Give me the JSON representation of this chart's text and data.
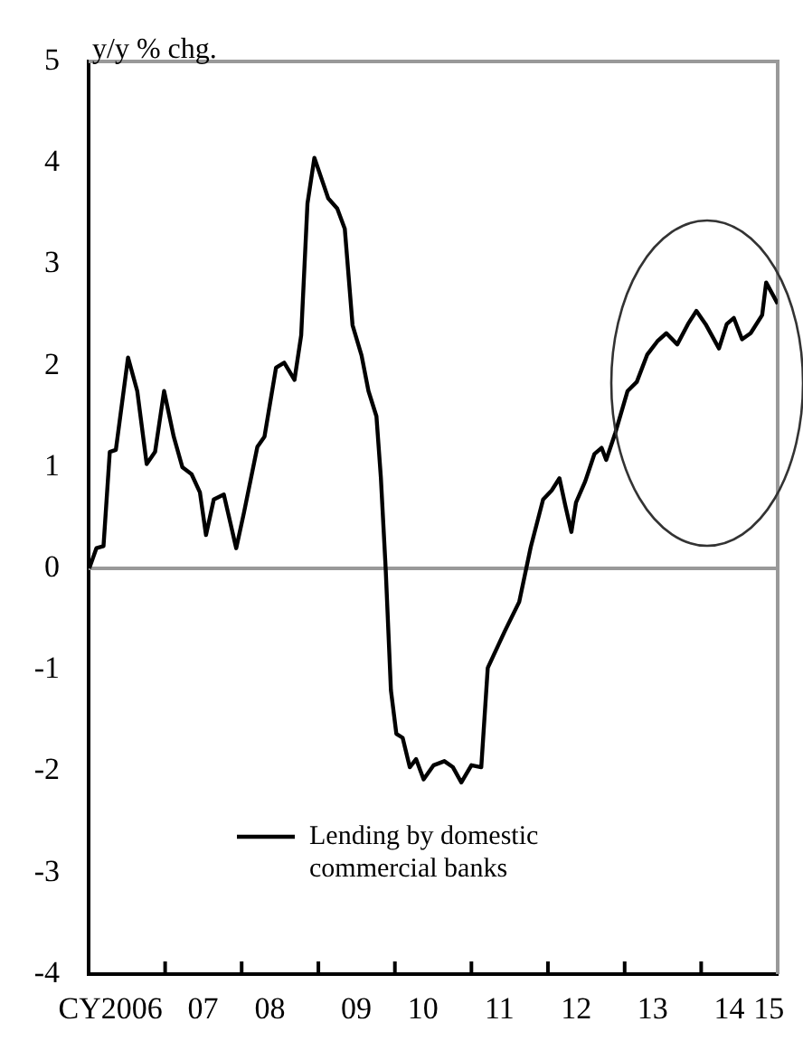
{
  "chart_data": {
    "type": "line",
    "ylabel": "y/y % chg.",
    "x": [
      "2006-01-04",
      "2006-02-07",
      "2006-03-13",
      "2006-04-12",
      "2006-05-11",
      "2006-07-08",
      "2006-08-21",
      "2006-10-05",
      "2006-11-14",
      "2006-12-27",
      "2007-02-11",
      "2007-03-24",
      "2007-05-07",
      "2007-06-16",
      "2007-07-15",
      "2007-08-21",
      "2007-10-08",
      "2007-12-06",
      "2008-01-12",
      "2008-03-16",
      "2008-04-19",
      "2008-06-13",
      "2008-07-22",
      "2008-09-09",
      "2008-10-11",
      "2008-11-10",
      "2008-12-13",
      "2009-02-17",
      "2009-04-01",
      "2009-05-07",
      "2009-06-13",
      "2009-07-26",
      "2009-08-28",
      "2009-10-05",
      "2009-10-26",
      "2009-11-18",
      "2009-12-13",
      "2010-01-08",
      "2010-02-07",
      "2010-03-13",
      "2010-04-12",
      "2010-05-18",
      "2010-07-05",
      "2010-08-25",
      "2010-10-05",
      "2010-11-14",
      "2011-01-01",
      "2011-02-17",
      "2011-03-20",
      "2011-06-09",
      "2011-08-17",
      "2011-10-11",
      "2011-12-09",
      "2012-01-19",
      "2012-02-25",
      "2012-03-24",
      "2012-04-22",
      "2012-05-14",
      "2012-06-27",
      "2012-08-10",
      "2012-09-13",
      "2012-10-05",
      "2012-11-18",
      "2013-01-15",
      "2013-02-28",
      "2013-04-19",
      "2013-06-06",
      "2013-07-19",
      "2013-09-09",
      "2013-10-30",
      "2013-12-09",
      "2014-01-22",
      "2014-03-27",
      "2014-05-03",
      "2014-06-06",
      "2014-07-15",
      "2014-08-25",
      "2014-10-19",
      "2014-11-07",
      "2015-01-01"
    ],
    "series": [
      {
        "name": "Lending by domestic commercial banks",
        "color": "#000000",
        "values": [
          0,
          0.2,
          0.22,
          1.15,
          1.17,
          2.08,
          1.75,
          1.03,
          1.15,
          1.75,
          1.3,
          1.0,
          0.93,
          0.75,
          0.33,
          0.68,
          0.73,
          0.2,
          0.55,
          1.2,
          1.3,
          1.98,
          2.03,
          1.86,
          2.3,
          3.6,
          4.05,
          3.65,
          3.55,
          3.35,
          2.4,
          2.1,
          1.75,
          1.5,
          0.9,
          0,
          -1.2,
          -1.63,
          -1.67,
          -1.96,
          -1.88,
          -2.08,
          -1.94,
          -1.9,
          -1.96,
          -2.11,
          -1.94,
          -1.96,
          -0.98,
          -0.62,
          -0.33,
          0.21,
          0.68,
          0.77,
          0.89,
          0.62,
          0.36,
          0.65,
          0.86,
          1.13,
          1.19,
          1.07,
          1.34,
          1.75,
          1.84,
          2.11,
          2.24,
          2.32,
          2.21,
          2.41,
          2.54,
          2.41,
          2.17,
          2.41,
          2.47,
          2.26,
          2.32,
          2.5,
          2.82,
          2.61
        ]
      }
    ],
    "xlim": [
      "2006-01-01",
      "2015-01-01"
    ],
    "xticks": [
      {
        "value": "2006-04-15",
        "label": "CY2006"
      },
      {
        "value": "2007-01-01",
        "label": null
      },
      {
        "value": "2007-07-01",
        "label": "07"
      },
      {
        "value": "2008-01-01",
        "label": null
      },
      {
        "value": "2008-05-15",
        "label": "08"
      },
      {
        "value": "2009-01-01",
        "label": null
      },
      {
        "value": "2009-07-01",
        "label": "09"
      },
      {
        "value": "2010-01-01",
        "label": null
      },
      {
        "value": "2010-05-15",
        "label": "10"
      },
      {
        "value": "2011-01-01",
        "label": null
      },
      {
        "value": "2011-05-15",
        "label": "11"
      },
      {
        "value": "2012-01-01",
        "label": null
      },
      {
        "value": "2012-05-15",
        "label": "12"
      },
      {
        "value": "2013-01-01",
        "label": null
      },
      {
        "value": "2013-05-15",
        "label": "13"
      },
      {
        "value": "2014-01-01",
        "label": null
      },
      {
        "value": "2014-05-15",
        "label": "14"
      },
      {
        "value": "2014-11-20",
        "label": "15"
      }
    ],
    "ylim": [
      -4,
      5
    ],
    "yticks": [
      -4,
      -3,
      -2,
      -1,
      0,
      1,
      2,
      3,
      4,
      5
    ],
    "ref_lines": [
      {
        "axis": "y",
        "value": 0,
        "color": "#999999"
      }
    ],
    "grid": false,
    "legend": "bottom",
    "marker": "none",
    "line_style": "solid"
  }
}
